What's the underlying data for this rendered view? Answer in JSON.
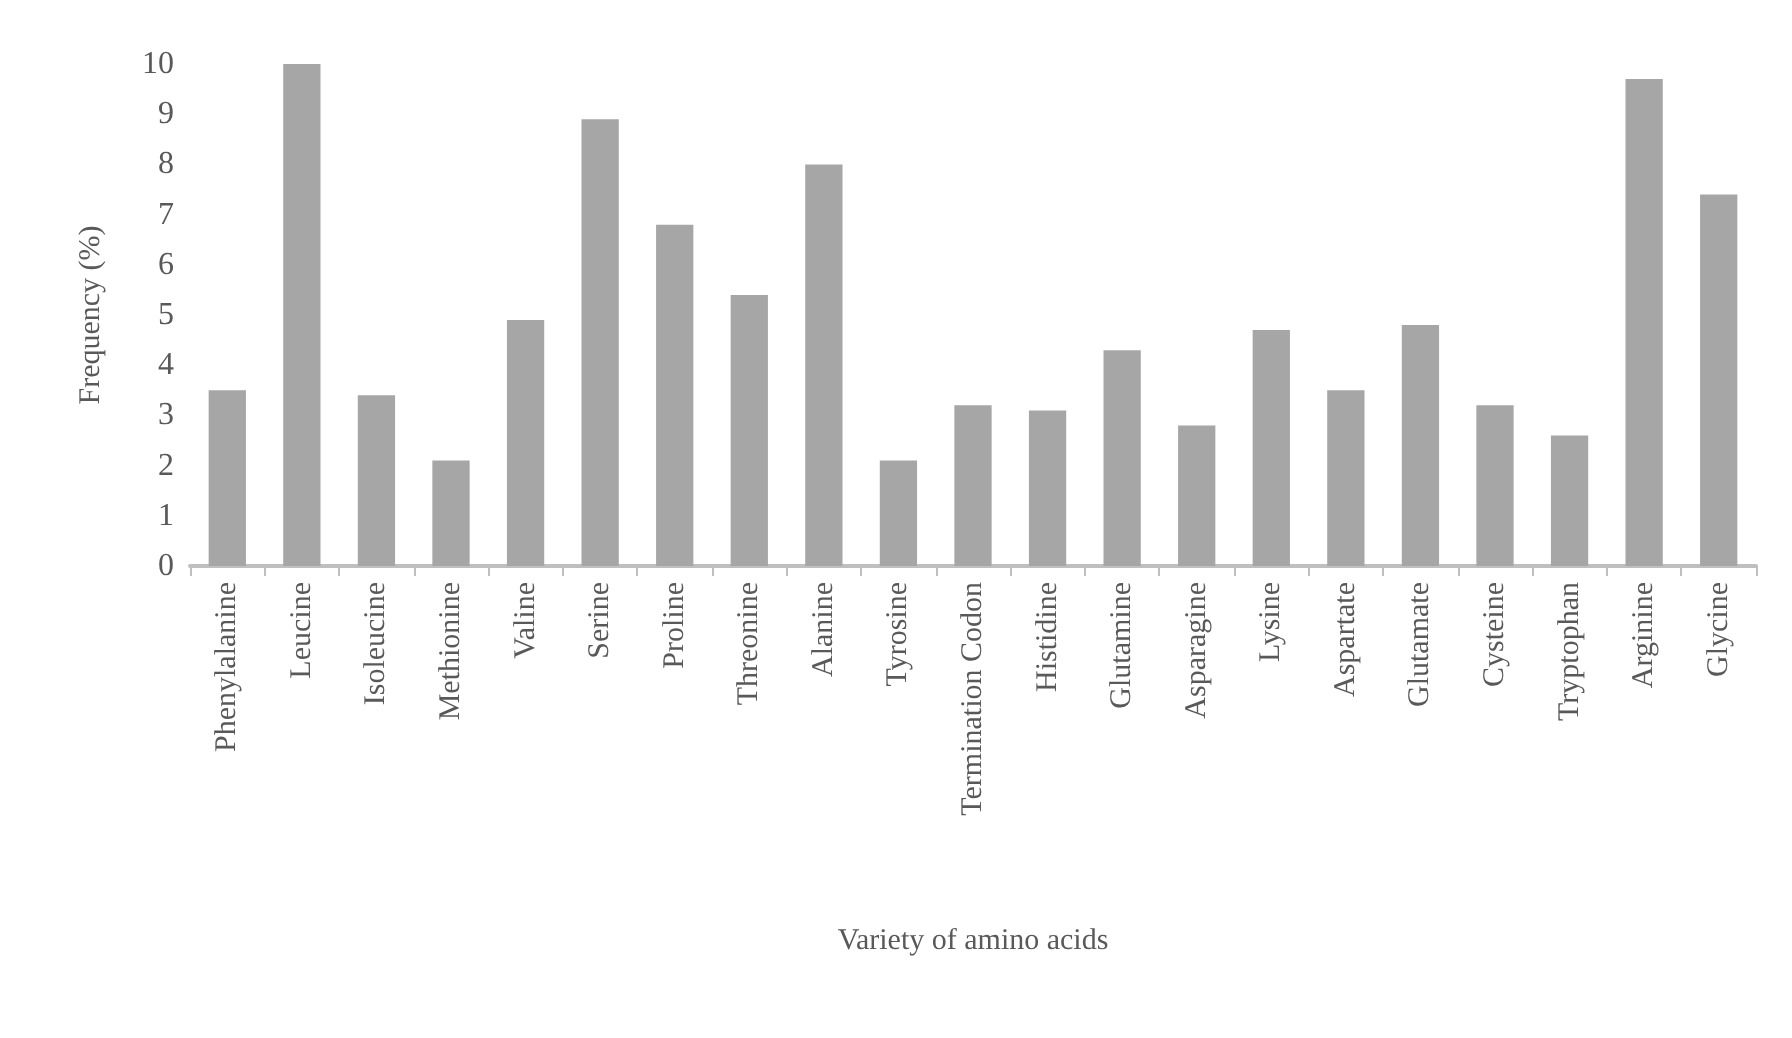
{
  "chart_data": {
    "type": "bar",
    "xlabel": "Variety of amino acids",
    "ylabel": "Frequency (%)",
    "categories": [
      "Phenylalanine",
      "Leucine",
      "Isoleucine",
      "Methionine",
      "Valine",
      "Serine",
      "Proline",
      "Threonine",
      "Alanine",
      "Tyrosine",
      "Termination Codon",
      "Histidine",
      "Glutamine",
      "Asparagine",
      "Lysine",
      "Aspartate",
      "Glutamate",
      "Cysteine",
      "Tryptophan",
      "Arginine",
      "Glycine"
    ],
    "values": [
      3.5,
      10.0,
      3.4,
      2.1,
      4.9,
      8.9,
      6.8,
      5.4,
      8.0,
      2.1,
      3.2,
      3.1,
      4.3,
      2.8,
      4.7,
      3.5,
      4.8,
      3.2,
      2.6,
      9.7,
      7.4
    ],
    "color": "#a6a6a6",
    "ylim": [
      0,
      10
    ],
    "yticks": [
      0,
      1,
      2,
      3,
      4,
      5,
      6,
      7,
      8,
      9,
      10
    ],
    "grid": false
  }
}
